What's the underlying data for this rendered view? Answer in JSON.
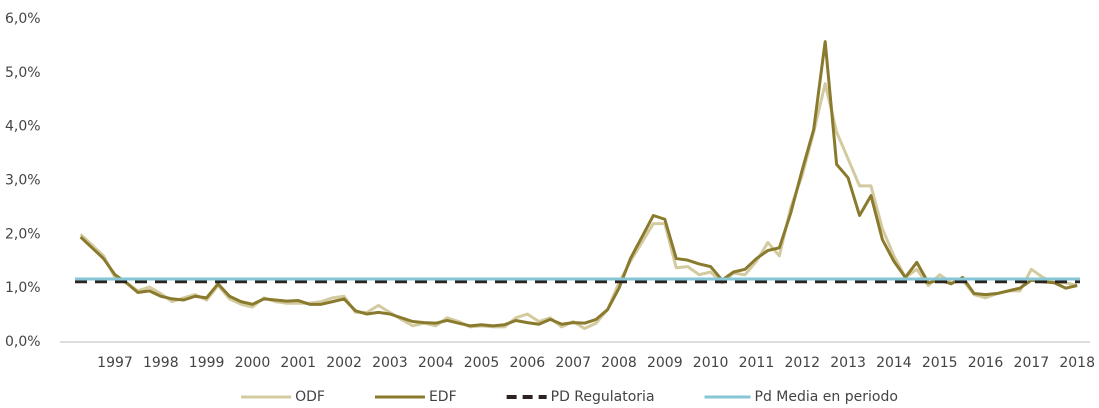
{
  "chart_data": {
    "type": "line",
    "x": [
      1996.25,
      1996.5,
      1996.75,
      1997,
      1997.25,
      1997.5,
      1997.75,
      1998,
      1998.25,
      1998.5,
      1998.75,
      1999,
      1999.25,
      1999.5,
      1999.75,
      2000,
      2000.25,
      2000.5,
      2000.75,
      2001,
      2001.25,
      2001.5,
      2001.75,
      2002,
      2002.25,
      2002.5,
      2002.75,
      2003,
      2003.25,
      2003.5,
      2003.75,
      2004,
      2004.25,
      2004.5,
      2004.75,
      2005,
      2005.25,
      2005.5,
      2005.75,
      2006,
      2006.25,
      2006.5,
      2006.75,
      2007,
      2007.25,
      2007.5,
      2007.75,
      2008,
      2008.25,
      2008.5,
      2008.75,
      2009,
      2009.25,
      2009.5,
      2009.75,
      2010,
      2010.25,
      2010.5,
      2010.75,
      2011,
      2011.25,
      2011.5,
      2011.75,
      2012,
      2012.25,
      2012.5,
      2012.75,
      2013,
      2013.25,
      2013.5,
      2013.75,
      2014,
      2014.25,
      2014.5,
      2014.75,
      2015,
      2015.25,
      2015.5,
      2015.75,
      2016,
      2016.25,
      2016.5,
      2016.75,
      2017,
      2017.25,
      2017.5,
      2017.75,
      2018
    ],
    "series": [
      {
        "name": "ODF",
        "color": "#d3cb9f",
        "width": 3,
        "values": [
          2.0,
          1.8,
          1.6,
          1.2,
          1.1,
          0.95,
          1.02,
          0.9,
          0.75,
          0.82,
          0.88,
          0.78,
          1.05,
          0.8,
          0.7,
          0.65,
          0.82,
          0.75,
          0.72,
          0.72,
          0.72,
          0.75,
          0.82,
          0.85,
          0.55,
          0.55,
          0.68,
          0.55,
          0.42,
          0.3,
          0.35,
          0.3,
          0.45,
          0.38,
          0.28,
          0.3,
          0.28,
          0.28,
          0.45,
          0.52,
          0.38,
          0.45,
          0.28,
          0.38,
          0.25,
          0.35,
          0.6,
          1.1,
          1.5,
          1.85,
          2.2,
          2.2,
          1.38,
          1.4,
          1.25,
          1.3,
          1.1,
          1.28,
          1.25,
          1.5,
          1.85,
          1.6,
          2.5,
          3.1,
          3.9,
          4.8,
          3.9,
          3.4,
          2.9,
          2.9,
          2.1,
          1.6,
          1.2,
          1.35,
          1.05,
          1.25,
          1.1,
          1.15,
          0.88,
          0.82,
          0.9,
          0.95,
          0.95,
          1.35,
          1.2,
          1.1,
          1.1,
          1.05
        ]
      },
      {
        "name": "EDF",
        "color": "#8a7a2e",
        "width": 3,
        "values": [
          1.95,
          1.75,
          1.55,
          1.25,
          1.1,
          0.92,
          0.95,
          0.85,
          0.8,
          0.78,
          0.85,
          0.82,
          1.08,
          0.85,
          0.75,
          0.7,
          0.8,
          0.78,
          0.76,
          0.77,
          0.7,
          0.7,
          0.75,
          0.8,
          0.58,
          0.52,
          0.55,
          0.52,
          0.45,
          0.38,
          0.36,
          0.35,
          0.4,
          0.35,
          0.3,
          0.32,
          0.3,
          0.32,
          0.4,
          0.36,
          0.33,
          0.42,
          0.33,
          0.36,
          0.35,
          0.42,
          0.6,
          1.0,
          1.55,
          1.95,
          2.35,
          2.28,
          1.55,
          1.52,
          1.45,
          1.4,
          1.15,
          1.3,
          1.35,
          1.55,
          1.7,
          1.75,
          2.4,
          3.2,
          3.95,
          5.58,
          3.3,
          3.05,
          2.35,
          2.72,
          1.9,
          1.5,
          1.2,
          1.48,
          1.1,
          1.15,
          1.08,
          1.2,
          0.9,
          0.88,
          0.9,
          0.95,
          1.0,
          1.15,
          1.12,
          1.1,
          1.0,
          1.05
        ]
      }
    ],
    "reference_lines": [
      {
        "name": "PD Regulatoria",
        "color": "#2b2320",
        "value": 1.12,
        "dashed": true
      },
      {
        "name": "Pd Media en periodo",
        "color": "#86c6d6",
        "value": 1.17,
        "dashed": false
      }
    ],
    "xlim": [
      1995.8,
      2018.28
    ],
    "xticks": [
      1997,
      1998,
      1999,
      2000,
      2001,
      2002,
      2003,
      2004,
      2005,
      2006,
      2007,
      2008,
      2009,
      2010,
      2011,
      2012,
      2013,
      2014,
      2015,
      2016,
      2017,
      2018
    ],
    "ylim": [
      0,
      6
    ],
    "yticks": [
      {
        "value": 0,
        "label": "0,0%"
      },
      {
        "value": 1,
        "label": "1,0%"
      },
      {
        "value": 2,
        "label": "2,0%"
      },
      {
        "value": 3,
        "label": "3,0%"
      },
      {
        "value": 4,
        "label": "4,0%"
      },
      {
        "value": 5,
        "label": "5,0%"
      },
      {
        "value": 6,
        "label": "6,0%"
      }
    ],
    "legend": "bottom"
  }
}
